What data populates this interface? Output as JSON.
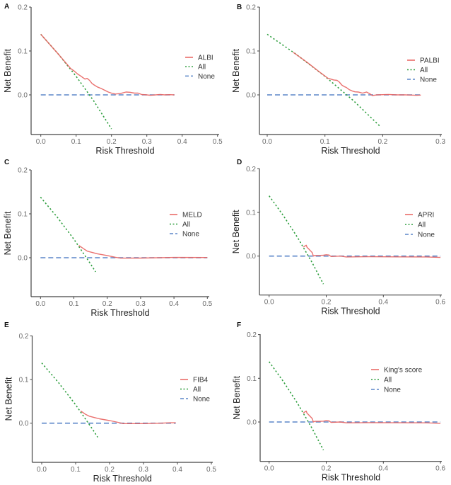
{
  "figure": {
    "panels": [
      "A",
      "B",
      "C",
      "D",
      "E",
      "F"
    ]
  },
  "chart_data": [
    {
      "panel": "A",
      "type": "line",
      "title": "",
      "xlabel": "Risk Threshold",
      "ylabel": "Net Benefit",
      "xlim": [
        0,
        0.5
      ],
      "ylim": [
        -0.09,
        0.2
      ],
      "xticks": [
        0,
        0.1,
        0.2,
        0.3,
        0.4,
        0.5
      ],
      "xtick_labels": [
        "0.0",
        "0.1",
        "0.2",
        "0.3",
        "0.4",
        "0.5"
      ],
      "yticks": [
        0,
        0.1,
        0.2
      ],
      "ytick_labels": [
        "0.0",
        "0.1",
        "0.2"
      ],
      "grid": false,
      "legend_position": "right",
      "series": [
        {
          "name": "ALBI",
          "style": "solid",
          "color": "#e8625f",
          "points": [
            [
              0,
              0.138
            ],
            [
              0.05,
              0.0926
            ],
            [
              0.0846,
              0.06
            ],
            [
              0.095,
              0.054
            ],
            [
              0.105,
              0.047
            ],
            [
              0.111,
              0.044
            ],
            [
              0.118,
              0.04
            ],
            [
              0.125,
              0.036
            ],
            [
              0.131,
              0.0376
            ],
            [
              0.138,
              0.033
            ],
            [
              0.145,
              0.026
            ],
            [
              0.151,
              0.0226
            ],
            [
              0.16,
              0.018
            ],
            [
              0.171,
              0.0145
            ],
            [
              0.18,
              0.011
            ],
            [
              0.191,
              0.0065
            ],
            [
              0.2,
              0.004
            ],
            [
              0.211,
              0.002
            ],
            [
              0.225,
              0.003
            ],
            [
              0.241,
              0.0065
            ],
            [
              0.252,
              0.006
            ],
            [
              0.265,
              0.004
            ],
            [
              0.275,
              0.004
            ],
            [
              0.285,
              0.001
            ],
            [
              0.3,
              0
            ],
            [
              0.31,
              -0.001
            ],
            [
              0.325,
              0
            ],
            [
              0.338,
              0.001
            ],
            [
              0.35,
              0
            ],
            [
              0.365,
              0.0005
            ],
            [
              0.378,
              0
            ]
          ]
        },
        {
          "name": "All",
          "style": "dotted",
          "color": "#2e9e3e",
          "points": [
            [
              0,
              0.138
            ],
            [
              0.05,
              0.0926
            ],
            [
              0.1,
              0.0422
            ],
            [
              0.15,
              -0.0141
            ],
            [
              0.2,
              -0.0775
            ]
          ]
        },
        {
          "name": "None",
          "style": "dashed",
          "color": "#5b86c8",
          "points": [
            [
              0,
              0
            ],
            [
              0.378,
              0
            ]
          ]
        }
      ]
    },
    {
      "panel": "B",
      "type": "line",
      "title": "",
      "xlabel": "Risk Threshold",
      "ylabel": "Net Benefit",
      "xlim": [
        0,
        0.3
      ],
      "ylim": [
        -0.09,
        0.2
      ],
      "xticks": [
        0,
        0.1,
        0.2,
        0.3
      ],
      "xtick_labels": [
        "0.0",
        "0.1",
        "0.2",
        "0.3"
      ],
      "yticks": [
        0,
        0.1,
        0.2
      ],
      "ytick_labels": [
        "0.0",
        "0.1",
        "0.2"
      ],
      "grid": false,
      "legend_position": "right",
      "series": [
        {
          "name": "PALBI",
          "style": "solid",
          "color": "#e8625f",
          "points": [
            [
              0.045,
              0.097
            ],
            [
              0.07,
              0.0732
            ],
            [
              0.09,
              0.0528
            ],
            [
              0.105,
              0.038
            ],
            [
              0.115,
              0.034
            ],
            [
              0.121,
              0.033
            ],
            [
              0.125,
              0.029
            ],
            [
              0.129,
              0.0226
            ],
            [
              0.133,
              0.019
            ],
            [
              0.137,
              0.017
            ],
            [
              0.142,
              0.012
            ],
            [
              0.147,
              0.009
            ],
            [
              0.152,
              0.007
            ],
            [
              0.158,
              0.0065
            ],
            [
              0.165,
              0.004
            ],
            [
              0.172,
              0.0065
            ],
            [
              0.177,
              0.003
            ],
            [
              0.182,
              -0.0015
            ],
            [
              0.19,
              0
            ],
            [
              0.2,
              0.0005
            ],
            [
              0.21,
              0.001
            ],
            [
              0.225,
              0
            ],
            [
              0.239,
              0
            ],
            [
              0.25,
              -0.0005
            ],
            [
              0.258,
              -0.001
            ],
            [
              0.266,
              -0.0005
            ]
          ]
        },
        {
          "name": "All",
          "style": "dotted",
          "color": "#2e9e3e",
          "points": [
            [
              0,
              0.138
            ],
            [
              0.05,
              0.0926
            ],
            [
              0.1,
              0.0422
            ],
            [
              0.15,
              -0.0141
            ],
            [
              0.197,
              -0.0735
            ]
          ]
        },
        {
          "name": "None",
          "style": "dashed",
          "color": "#5b86c8",
          "points": [
            [
              0,
              0
            ],
            [
              0.266,
              0
            ]
          ]
        }
      ]
    },
    {
      "panel": "C",
      "type": "line",
      "title": "",
      "xlabel": "Risk Threshold",
      "ylabel": "Net Benefit",
      "xlim": [
        0,
        0.5
      ],
      "ylim": [
        -0.09,
        0.2
      ],
      "xticks": [
        0,
        0.1,
        0.2,
        0.3,
        0.4,
        0.5
      ],
      "xtick_labels": [
        "0.0",
        "0.1",
        "0.2",
        "0.3",
        "0.4",
        "0.5"
      ],
      "yticks": [
        0,
        0.1,
        0.2
      ],
      "ytick_labels": [
        "0.0",
        "0.1",
        "0.2"
      ],
      "grid": false,
      "legend_position": "right",
      "series": [
        {
          "name": "MELD",
          "style": "solid",
          "color": "#e8625f",
          "points": [
            [
              0.115,
              0.0279
            ],
            [
              0.13,
              0.02
            ],
            [
              0.14,
              0.015
            ],
            [
              0.155,
              0.012
            ],
            [
              0.17,
              0.009
            ],
            [
              0.2,
              0.005
            ],
            [
              0.225,
              0.001
            ],
            [
              0.24,
              -0.001
            ],
            [
              0.3,
              -0.0008
            ],
            [
              0.4,
              0.0006
            ],
            [
              0.5,
              0.0005
            ]
          ]
        },
        {
          "name": "All",
          "style": "dotted",
          "color": "#2e9e3e",
          "points": [
            [
              0,
              0.138
            ],
            [
              0.05,
              0.0926
            ],
            [
              0.1,
              0.0422
            ],
            [
              0.15,
              -0.0141
            ],
            [
              0.165,
              -0.0323
            ]
          ]
        },
        {
          "name": "None",
          "style": "dashed",
          "color": "#5b86c8",
          "points": [
            [
              0,
              0
            ],
            [
              0.5,
              0
            ]
          ]
        }
      ]
    },
    {
      "panel": "D",
      "type": "line",
      "title": "",
      "xlabel": "Risk Threshold",
      "ylabel": "Net Benefit",
      "xlim": [
        0,
        0.6
      ],
      "ylim": [
        -0.09,
        0.2
      ],
      "xticks": [
        0,
        0.2,
        0.4,
        0.6
      ],
      "xtick_labels": [
        "0.0",
        "0.2",
        "0.4",
        "0.6"
      ],
      "yticks": [
        0,
        0.1,
        0.2
      ],
      "ytick_labels": [
        "0.0",
        "0.1",
        "0.2"
      ],
      "grid": false,
      "legend_position": "right",
      "series": [
        {
          "name": "APRI",
          "style": "solid",
          "color": "#e8625f",
          "points": [
            [
              0.12,
              0.0205
            ],
            [
              0.125,
              0.023
            ],
            [
              0.13,
              0.025
            ],
            [
              0.133,
              0.02
            ],
            [
              0.139,
              0.016
            ],
            [
              0.145,
              0.012
            ],
            [
              0.151,
              0.008
            ],
            [
              0.155,
              0
            ],
            [
              0.16,
              0.0015
            ],
            [
              0.18,
              0.0016
            ],
            [
              0.19,
              0.002
            ],
            [
              0.2,
              0.003
            ],
            [
              0.21,
              0.0025
            ],
            [
              0.217,
              -0.001
            ],
            [
              0.25,
              0
            ],
            [
              0.27,
              -0.002
            ],
            [
              0.35,
              -0.0015
            ],
            [
              0.45,
              -0.0018
            ],
            [
              0.55,
              -0.002
            ],
            [
              0.6,
              -0.003
            ]
          ]
        },
        {
          "name": "All",
          "style": "dotted",
          "color": "#2e9e3e",
          "points": [
            [
              0,
              0.138
            ],
            [
              0.05,
              0.0926
            ],
            [
              0.1,
              0.0422
            ],
            [
              0.15,
              -0.0141
            ],
            [
              0.19,
              -0.0642
            ]
          ]
        },
        {
          "name": "None",
          "style": "dashed",
          "color": "#5b86c8",
          "points": [
            [
              0,
              0
            ],
            [
              0.6,
              0
            ]
          ]
        }
      ]
    },
    {
      "panel": "E",
      "type": "line",
      "title": "",
      "xlabel": "Risk Threshold",
      "ylabel": "Net Benefit",
      "xlim": [
        0,
        0.5
      ],
      "ylim": [
        -0.09,
        0.2
      ],
      "xticks": [
        0,
        0.1,
        0.2,
        0.3,
        0.4,
        0.5
      ],
      "xtick_labels": [
        "0.0",
        "0.1",
        "0.2",
        "0.3",
        "0.4",
        "0.5"
      ],
      "yticks": [
        0,
        0.1,
        0.2
      ],
      "ytick_labels": [
        "0.0",
        "0.1",
        "0.2"
      ],
      "grid": false,
      "legend_position": "right",
      "series": [
        {
          "name": "FIB4",
          "style": "solid",
          "color": "#e8625f",
          "points": [
            [
              0.115,
              0.0279
            ],
            [
              0.13,
              0.02
            ],
            [
              0.14,
              0.016
            ],
            [
              0.155,
              0.013
            ],
            [
              0.17,
              0.01
            ],
            [
              0.2,
              0.006
            ],
            [
              0.225,
              0.002
            ],
            [
              0.24,
              -0.001
            ],
            [
              0.3,
              -0.001
            ],
            [
              0.35,
              0
            ],
            [
              0.38,
              0.001
            ],
            [
              0.395,
              0.001
            ]
          ]
        },
        {
          "name": "All",
          "style": "dotted",
          "color": "#2e9e3e",
          "points": [
            [
              0,
              0.138
            ],
            [
              0.05,
              0.0926
            ],
            [
              0.1,
              0.0422
            ],
            [
              0.15,
              -0.0141
            ],
            [
              0.165,
              -0.0323
            ]
          ]
        },
        {
          "name": "None",
          "style": "dashed",
          "color": "#5b86c8",
          "points": [
            [
              0,
              0
            ],
            [
              0.395,
              0
            ]
          ]
        }
      ]
    },
    {
      "panel": "F",
      "type": "line",
      "title": "",
      "xlabel": "Risk Threshold",
      "ylabel": "Net Benefit",
      "xlim": [
        0,
        0.6
      ],
      "ylim": [
        -0.09,
        0.2
      ],
      "xticks": [
        0,
        0.2,
        0.4,
        0.6
      ],
      "xtick_labels": [
        "0.0",
        "0.2",
        "0.4",
        "0.6"
      ],
      "yticks": [
        0,
        0.1,
        0.2
      ],
      "ytick_labels": [
        "0.0",
        "0.1",
        "0.2"
      ],
      "grid": false,
      "legend_position": "right",
      "series": [
        {
          "name": "King's score",
          "style": "solid",
          "color": "#e8625f",
          "points": [
            [
              0.12,
              0.0205
            ],
            [
              0.125,
              0.023
            ],
            [
              0.13,
              0.025
            ],
            [
              0.133,
              0.02
            ],
            [
              0.139,
              0.016
            ],
            [
              0.145,
              0.012
            ],
            [
              0.151,
              0.008
            ],
            [
              0.155,
              0
            ],
            [
              0.16,
              0.0015
            ],
            [
              0.18,
              0.0016
            ],
            [
              0.19,
              0.002
            ],
            [
              0.2,
              0.003
            ],
            [
              0.21,
              0.0025
            ],
            [
              0.217,
              -0.001
            ],
            [
              0.25,
              0
            ],
            [
              0.27,
              -0.002
            ],
            [
              0.35,
              -0.0015
            ],
            [
              0.45,
              -0.0018
            ],
            [
              0.55,
              -0.002
            ],
            [
              0.6,
              -0.003
            ]
          ]
        },
        {
          "name": "All",
          "style": "dotted",
          "color": "#2e9e3e",
          "points": [
            [
              0,
              0.138
            ],
            [
              0.05,
              0.0926
            ],
            [
              0.1,
              0.0422
            ],
            [
              0.15,
              -0.0141
            ],
            [
              0.19,
              -0.0642
            ]
          ]
        },
        {
          "name": "None",
          "style": "dashed",
          "color": "#5b86c8",
          "points": [
            [
              0,
              0
            ],
            [
              0.6,
              0
            ]
          ]
        }
      ]
    }
  ]
}
